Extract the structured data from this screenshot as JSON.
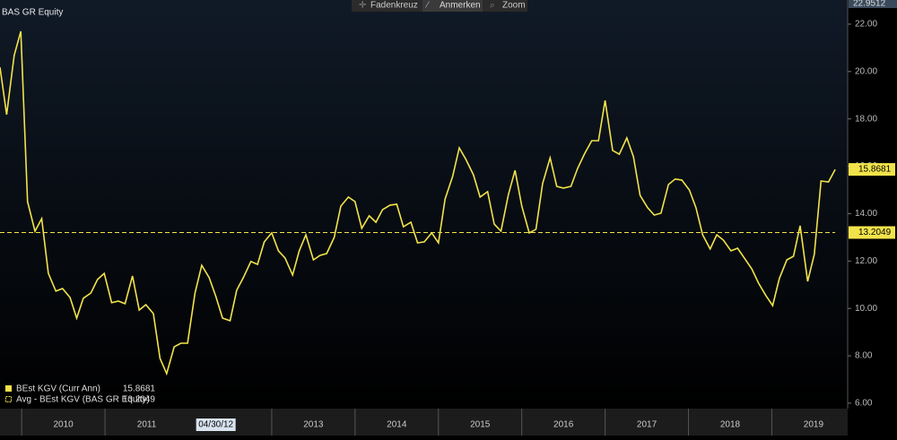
{
  "chart_data": {
    "type": "line",
    "title": "BAS GR Equity",
    "toolbar": [
      "Fadenkreuz",
      "Anmerken",
      "Zoom"
    ],
    "cursor_label": "04/30/12",
    "cursor_x": 2012.33,
    "y_max_label": 22.9512,
    "xlim": [
      2009.74,
      2019.91
    ],
    "xticks": [
      2010,
      2011,
      2013,
      2014,
      2015,
      2016,
      2017,
      2018,
      2019
    ],
    "ylim": [
      5.77,
      23.02
    ],
    "yticks": [
      {
        "value": 6,
        "label": "6.00"
      },
      {
        "value": 8,
        "label": "8.00"
      },
      {
        "value": 10,
        "label": "10.00"
      },
      {
        "value": 12,
        "label": "12.00"
      },
      {
        "value": 14,
        "label": "14.00"
      },
      {
        "value": 16,
        "label": "16.00"
      },
      {
        "value": 18,
        "label": "18.00"
      },
      {
        "value": 20,
        "label": "20.00"
      },
      {
        "value": 22,
        "label": "22.00"
      }
    ],
    "x": [
      2009.74,
      2009.82,
      2009.91,
      2009.99,
      2010.07,
      2010.16,
      2010.24,
      2010.32,
      2010.41,
      2010.49,
      2010.58,
      2010.66,
      2010.74,
      2010.83,
      2010.91,
      2010.99,
      2011.08,
      2011.16,
      2011.24,
      2011.33,
      2011.41,
      2011.49,
      2011.58,
      2011.66,
      2011.74,
      2011.83,
      2011.91,
      2011.99,
      2012.08,
      2012.16,
      2012.25,
      2012.33,
      2012.41,
      2012.5,
      2012.58,
      2012.66,
      2012.75,
      2012.83,
      2012.91,
      2013.0,
      2013.08,
      2013.16,
      2013.25,
      2013.33,
      2013.41,
      2013.5,
      2013.58,
      2013.66,
      2013.75,
      2013.83,
      2013.92,
      2014.0,
      2014.08,
      2014.17,
      2014.25,
      2014.33,
      2014.42,
      2014.5,
      2014.58,
      2014.67,
      2014.75,
      2014.83,
      2014.92,
      2015.0,
      2015.08,
      2015.17,
      2015.25,
      2015.33,
      2015.42,
      2015.5,
      2015.59,
      2015.67,
      2015.75,
      2015.84,
      2015.92,
      2016.0,
      2016.09,
      2016.17,
      2016.25,
      2016.34,
      2016.42,
      2016.5,
      2016.59,
      2016.67,
      2016.75,
      2016.84,
      2016.92,
      2017.0,
      2017.09,
      2017.17,
      2017.26,
      2017.34,
      2017.42,
      2017.51,
      2017.59,
      2017.67,
      2017.76,
      2017.84,
      2017.92,
      2018.01,
      2018.09,
      2018.17,
      2018.26,
      2018.34,
      2018.42,
      2018.51,
      2018.59,
      2018.67,
      2018.76,
      2018.84,
      2018.93,
      2019.01,
      2019.09,
      2019.18,
      2019.26,
      2019.34,
      2019.43,
      2019.51,
      2019.59,
      2019.68,
      2019.76
    ],
    "series": [
      {
        "name": "BEst KGV (Curr Ann)",
        "color": "#f2e34b",
        "values": [
          20.18,
          18.18,
          20.68,
          21.7,
          14.51,
          13.26,
          13.79,
          11.48,
          10.73,
          10.84,
          10.46,
          9.59,
          10.43,
          10.65,
          11.22,
          11.48,
          10.24,
          10.31,
          10.2,
          11.37,
          9.93,
          10.16,
          9.78,
          7.89,
          7.25,
          8.38,
          8.53,
          8.53,
          10.65,
          11.82,
          11.3,
          10.5,
          9.59,
          9.48,
          10.77,
          11.3,
          11.98,
          11.86,
          12.81,
          13.19,
          12.43,
          12.13,
          11.41,
          12.43,
          13.11,
          12.05,
          12.24,
          12.32,
          13.0,
          14.32,
          14.7,
          14.51,
          13.38,
          13.91,
          13.64,
          14.17,
          14.36,
          14.4,
          13.45,
          13.64,
          12.77,
          12.81,
          13.19,
          12.77,
          14.62,
          15.57,
          16.78,
          16.29,
          15.64,
          14.7,
          14.93,
          13.56,
          13.26,
          14.81,
          15.83,
          14.32,
          13.19,
          13.34,
          15.27,
          16.36,
          15.15,
          15.08,
          15.15,
          15.91,
          16.51,
          17.08,
          17.08,
          18.78,
          16.67,
          16.51,
          17.2,
          16.4,
          14.77,
          14.25,
          13.94,
          14.02,
          15.23,
          15.46,
          15.42,
          15.0,
          14.25,
          13.11,
          12.51,
          13.11,
          12.88,
          12.43,
          12.54,
          12.13,
          11.67,
          11.07,
          10.54,
          10.12,
          11.26,
          12.05,
          12.2,
          13.49,
          11.14,
          12.28,
          15.38,
          15.34,
          15.8681
        ]
      }
    ],
    "average": {
      "name": "Avg - BEst KGV (BAS GR Equity)",
      "color": "#f2e34b",
      "value": 13.2049
    }
  }
}
